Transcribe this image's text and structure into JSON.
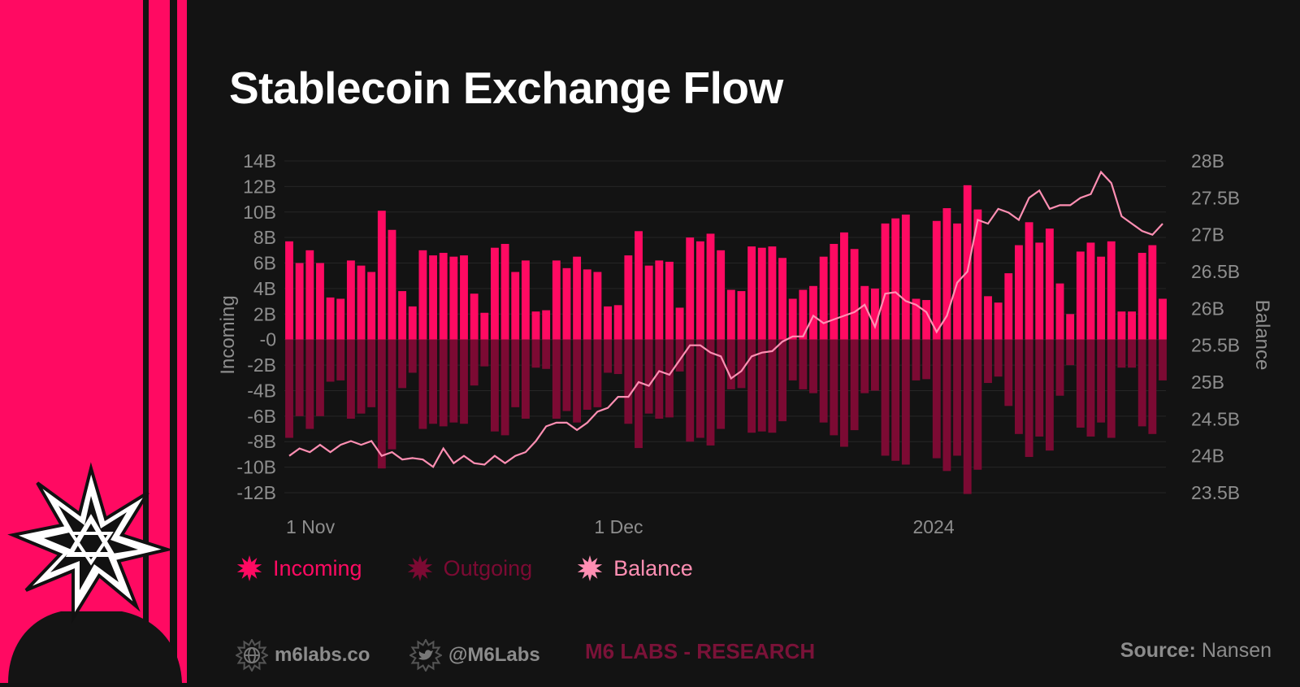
{
  "title": "Stablecoin Exchange Flow",
  "colors": {
    "incoming": "#ff0a62",
    "outgoing": "#7c0a33",
    "balance": "#ff8fb3",
    "accent": "#ff0a62",
    "background": "#131313",
    "research": "#7a1238",
    "muted": "#8c8c8c"
  },
  "chart_data": {
    "type": "bar",
    "title": "Stablecoin Exchange Flow",
    "ylabel": "Incoming",
    "y2label": "Balance",
    "ylim": [
      -12,
      14
    ],
    "y2lim": [
      23.5,
      28
    ],
    "y_ticks": [
      "14B",
      "12B",
      "10B",
      "8B",
      "6B",
      "4B",
      "2B",
      "-0",
      "-2B",
      "-4B",
      "-6B",
      "-8B",
      "-10B",
      "-12B"
    ],
    "y2_ticks": [
      "28B",
      "27.5B",
      "27B",
      "26.5B",
      "26B",
      "25.5B",
      "25B",
      "24.5B",
      "24B",
      "23.5B"
    ],
    "x_ticks": [
      {
        "label": "1 Nov",
        "index": 0
      },
      {
        "label": "1 Dec",
        "index": 30
      },
      {
        "label": "2024",
        "index": 61
      }
    ],
    "grid": true,
    "legend_position": "bottom-left",
    "series": [
      {
        "name": "Incoming",
        "values": [
          7.7,
          6.0,
          7.0,
          6.0,
          3.3,
          3.2,
          6.2,
          5.8,
          5.3,
          10.1,
          8.6,
          3.8,
          2.6,
          7.0,
          6.6,
          6.8,
          6.5,
          6.6,
          3.6,
          2.1,
          7.2,
          7.5,
          5.3,
          6.2,
          2.2,
          2.3,
          6.2,
          5.6,
          6.5,
          5.5,
          5.3,
          2.6,
          2.7,
          6.6,
          8.5,
          5.8,
          6.2,
          6.1,
          2.5,
          8.0,
          7.7,
          8.3,
          7.0,
          3.9,
          3.8,
          7.3,
          7.2,
          7.3,
          6.4,
          3.2,
          3.9,
          4.2,
          6.5,
          7.5,
          8.4,
          7.1,
          4.2,
          4.0,
          9.1,
          9.5,
          9.8,
          3.2,
          3.1,
          9.3,
          10.3,
          9.1,
          12.1,
          10.2,
          3.4,
          2.9,
          5.2,
          7.4,
          9.2,
          7.6,
          8.7,
          4.4,
          2.0,
          6.9,
          7.6,
          6.5,
          7.7,
          2.2,
          2.2,
          6.8,
          7.4,
          3.2
        ]
      },
      {
        "name": "Outgoing",
        "values": [
          -7.7,
          -6.0,
          -7.0,
          -6.0,
          -3.3,
          -3.2,
          -6.2,
          -5.8,
          -5.3,
          -10.1,
          -8.6,
          -3.8,
          -2.6,
          -7.0,
          -6.6,
          -6.8,
          -6.5,
          -6.6,
          -3.6,
          -2.1,
          -7.2,
          -7.5,
          -5.3,
          -6.2,
          -2.2,
          -2.3,
          -6.2,
          -5.6,
          -6.5,
          -5.5,
          -5.3,
          -2.6,
          -2.7,
          -6.6,
          -8.5,
          -5.8,
          -6.2,
          -6.1,
          -2.5,
          -8.0,
          -7.7,
          -8.3,
          -7.0,
          -3.9,
          -3.8,
          -7.3,
          -7.2,
          -7.3,
          -6.4,
          -3.2,
          -3.9,
          -4.2,
          -6.5,
          -7.5,
          -8.4,
          -7.1,
          -4.2,
          -4.0,
          -9.1,
          -9.5,
          -9.8,
          -3.2,
          -3.1,
          -9.3,
          -10.3,
          -9.1,
          -12.1,
          -10.2,
          -3.4,
          -2.9,
          -5.2,
          -7.4,
          -9.2,
          -7.6,
          -8.7,
          -4.4,
          -2.0,
          -6.9,
          -7.6,
          -6.5,
          -7.7,
          -2.2,
          -2.2,
          -6.8,
          -7.4,
          -3.2
        ]
      },
      {
        "name": "Balance",
        "axis": "right",
        "values": [
          24.0,
          24.1,
          24.05,
          24.15,
          24.05,
          24.15,
          24.2,
          24.15,
          24.2,
          24.0,
          24.05,
          23.95,
          23.97,
          23.95,
          23.85,
          24.1,
          23.9,
          24.0,
          23.9,
          23.88,
          24.0,
          23.9,
          24.0,
          24.05,
          24.2,
          24.4,
          24.45,
          24.45,
          24.35,
          24.45,
          24.6,
          24.65,
          24.8,
          24.8,
          25.0,
          24.95,
          25.15,
          25.1,
          25.3,
          25.5,
          25.5,
          25.4,
          25.35,
          25.05,
          25.15,
          25.35,
          25.4,
          25.42,
          25.55,
          25.62,
          25.62,
          25.9,
          25.8,
          25.85,
          25.9,
          25.95,
          26.05,
          25.75,
          26.2,
          26.22,
          26.1,
          26.05,
          25.95,
          25.68,
          25.9,
          26.35,
          26.5,
          27.2,
          27.15,
          27.35,
          27.3,
          27.2,
          27.5,
          27.6,
          27.35,
          27.4,
          27.4,
          27.5,
          27.55,
          27.85,
          27.7,
          27.25,
          27.15,
          27.05,
          27.0,
          27.15
        ]
      }
    ]
  },
  "legend": [
    {
      "label": "Incoming",
      "icon": "incoming-burst-icon"
    },
    {
      "label": "Outgoing",
      "icon": "outgoing-burst-icon"
    },
    {
      "label": "Balance",
      "icon": "balance-burst-icon"
    }
  ],
  "footer": {
    "website": "m6labs.co",
    "twitter": "@M6Labs",
    "research": "M6 LABS - RESEARCH",
    "source_label": "Source:",
    "source_value": "Nansen"
  }
}
